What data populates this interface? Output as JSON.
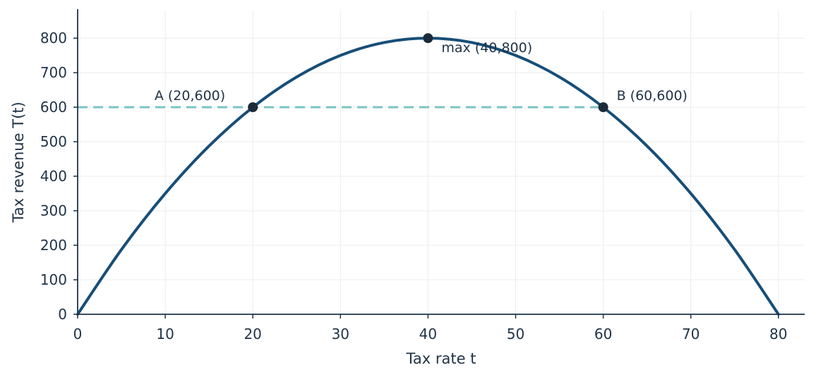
{
  "chart_data": {
    "type": "line",
    "title": "",
    "xlabel": "Tax rate t",
    "ylabel": "Tax revenue T(t)",
    "xlim": [
      0,
      83
    ],
    "ylim": [
      0,
      880
    ],
    "xticks": [
      0,
      10,
      20,
      30,
      40,
      50,
      60,
      70,
      80
    ],
    "yticks": [
      0,
      100,
      200,
      300,
      400,
      500,
      600,
      700,
      800
    ],
    "grid": true,
    "series": [
      {
        "type": "curve",
        "x": [
          0,
          5,
          10,
          15,
          20,
          25,
          30,
          35,
          40,
          45,
          50,
          55,
          60,
          65,
          70,
          75,
          80
        ],
        "y": [
          0,
          187.5,
          350,
          487.5,
          600,
          687.5,
          750,
          787.5,
          800,
          787.5,
          750,
          687.5,
          600,
          487.5,
          350,
          187.5,
          0
        ]
      },
      {
        "type": "reference",
        "x": [
          0,
          60
        ],
        "y": [
          600,
          600
        ]
      }
    ],
    "points": [
      {
        "x": 20,
        "y": 600,
        "label": "A (20,600)"
      },
      {
        "x": 40,
        "y": 800,
        "label": "max (40,800)"
      },
      {
        "x": 60,
        "y": 600,
        "label": "B (60,600)"
      }
    ],
    "colors": {
      "curve": "#174e78",
      "reference": "#7cc4c4",
      "points": "#1c2b3a",
      "axis": "#1f3347",
      "grid": "#ececec"
    }
  }
}
